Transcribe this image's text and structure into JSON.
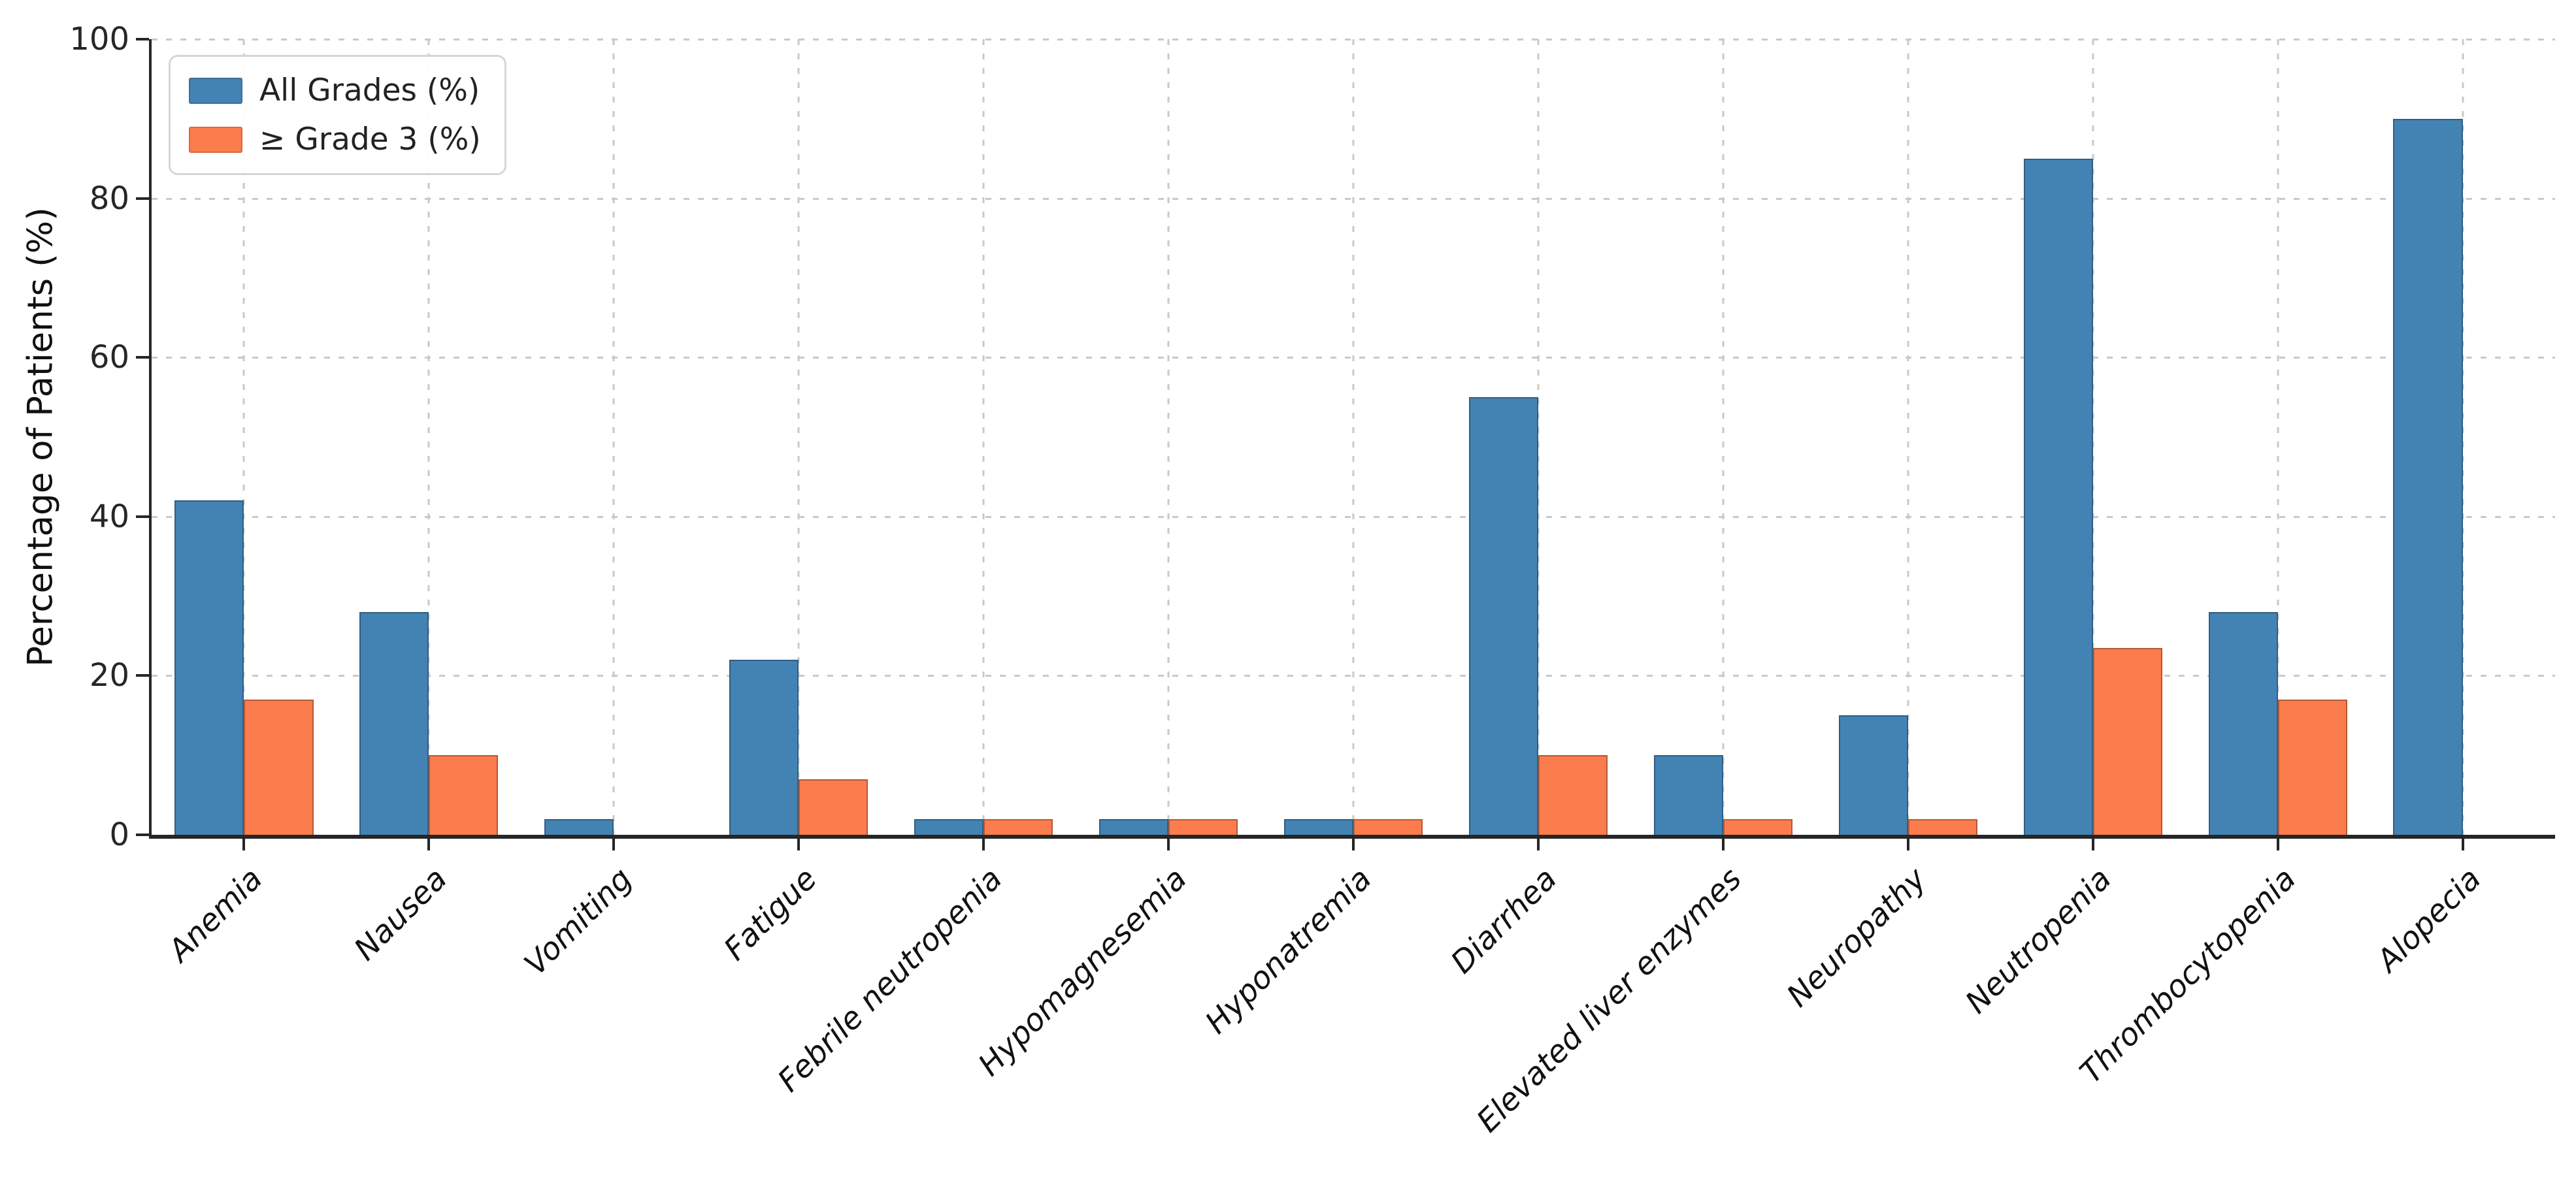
{
  "chart_data": {
    "type": "bar",
    "title": "",
    "xlabel": "",
    "ylabel": "Percentage of Patients (%)",
    "ylim": [
      0,
      100
    ],
    "yticks": [
      0,
      20,
      40,
      60,
      80,
      100
    ],
    "grid": "dashed-both-axes",
    "legend_position": "upper-left",
    "categories": [
      "Anemia",
      "Nausea",
      "Vomiting",
      "Fatigue",
      "Febrile neutropenia",
      "Hypomagnesemia",
      "Hyponatremia",
      "Diarrhea",
      "Elevated liver enzymes",
      "Neuropathy",
      "Neutropenia",
      "Thrombocytopenia",
      "Alopecia"
    ],
    "series": [
      {
        "name": "All Grades (%)",
        "color": "#4383b4",
        "values": [
          42,
          28,
          2,
          22,
          2,
          2,
          2,
          55,
          10,
          15,
          85,
          28,
          90
        ]
      },
      {
        "name": "≥ Grade 3 (%)",
        "color": "#fb7c4c",
        "values": [
          17,
          10,
          0,
          7,
          2,
          2,
          2,
          10,
          2,
          2,
          23.5,
          17,
          0
        ]
      }
    ],
    "colors": {
      "bar_blue": "#4383b4",
      "bar_orange": "#fb7c4c",
      "bar_edge": "rgba(0,0,0,0.28)",
      "gridline": "#c9c9c9",
      "axis": "#262626",
      "background": "#ffffff"
    }
  }
}
